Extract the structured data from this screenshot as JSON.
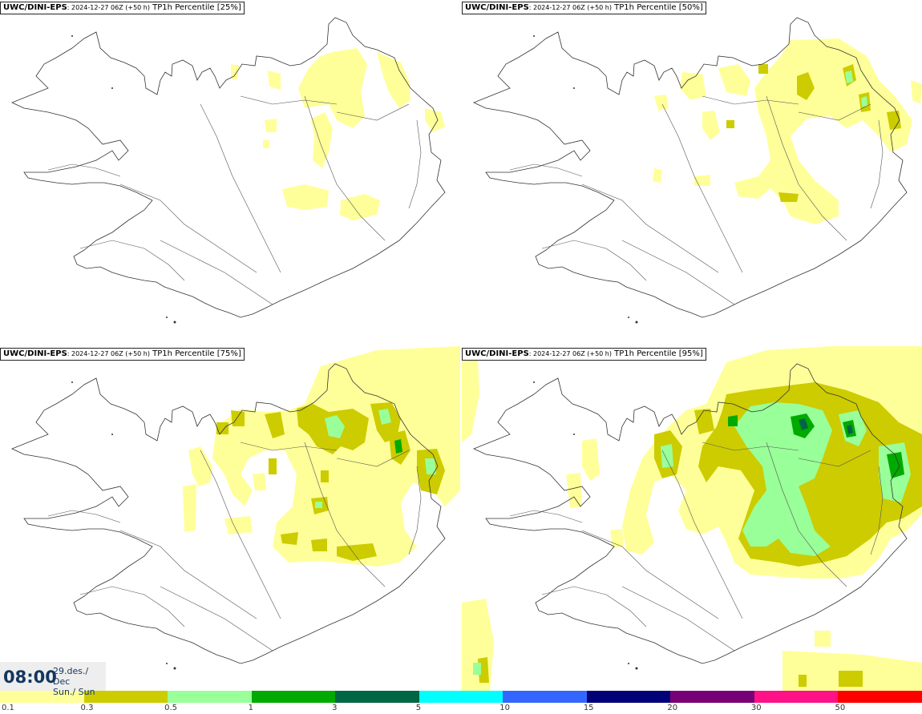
{
  "panels": [
    {
      "model": "UWC/DINI-EPS",
      "meta": ": 2024-12-27 06Z (+50 h)",
      "field": "TP1h Percentile [25%]"
    },
    {
      "model": "UWC/DINI-EPS",
      "meta": ": 2024-12-27 06Z (+50 h)",
      "field": "TP1h Percentile [50%]"
    },
    {
      "model": "UWC/DINI-EPS",
      "meta": ": 2024-12-27 06Z (+50 h)",
      "field": "TP1h Percentile [75%]"
    },
    {
      "model": "UWC/DINI-EPS",
      "meta": ": 2024-12-27 06Z (+50 h)",
      "field": "TP1h Percentile [95%]"
    }
  ],
  "valid_time": {
    "time": "08:00",
    "date": "29.des./ Dec",
    "day": "Sun./ Sun"
  },
  "legend": {
    "colors": [
      "#ffff99",
      "#cccc00",
      "#99ff99",
      "#00aa00",
      "#006644",
      "#00ffff",
      "#3366ff",
      "#000077",
      "#770077",
      "#ff1188",
      "#ff0000"
    ],
    "labels": [
      "0.1",
      "0.3",
      "0.5",
      "1",
      "3",
      "5",
      "10",
      "15",
      "20",
      "30",
      "50"
    ]
  }
}
